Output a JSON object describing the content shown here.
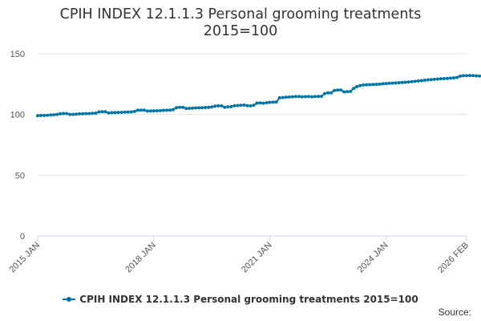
{
  "colors": {
    "series": "#0075a3",
    "grid": "#e6e6e6",
    "axis": "#ccd6eb",
    "text": "#333333"
  },
  "source_label": "Source:",
  "chart_data": {
    "type": "line",
    "title_lines": [
      "CPIH INDEX 12.1.1.3 Personal grooming treatments",
      "2015=100"
    ],
    "xlabel": "",
    "ylabel": "",
    "ylim": [
      0,
      150
    ],
    "y_ticks": [
      0,
      50,
      100,
      150
    ],
    "x_ticks": [
      {
        "value": "2015-01",
        "label": "2015 JAN"
      },
      {
        "value": "2018-01",
        "label": "2018 JAN"
      },
      {
        "value": "2021-01",
        "label": "2021 JAN"
      },
      {
        "value": "2024-01",
        "label": "2024 JAN"
      },
      {
        "value": "2026-02",
        "label": "2026 FEB"
      }
    ],
    "grid": true,
    "legend_position": "bottom-center",
    "x_start": "2015-01",
    "x_end": "2026-02",
    "series": [
      {
        "name": "CPIH INDEX 12.1.1.3 Personal grooming treatments 2015=100",
        "values": [
          99.0,
          99.2,
          99.2,
          99.4,
          99.6,
          99.8,
          100.0,
          100.6,
          100.8,
          100.8,
          100.0,
          100.1,
          100.3,
          100.5,
          100.6,
          100.7,
          100.8,
          100.9,
          101.1,
          102.1,
          102.3,
          102.3,
          101.3,
          101.5,
          101.6,
          101.7,
          101.8,
          101.9,
          102.0,
          102.1,
          102.5,
          103.5,
          103.6,
          103.6,
          102.8,
          102.9,
          103.0,
          103.1,
          103.2,
          103.4,
          103.5,
          103.6,
          104.0,
          105.6,
          105.9,
          105.9,
          105.0,
          105.1,
          105.2,
          105.4,
          105.5,
          105.6,
          105.7,
          105.9,
          106.2,
          106.9,
          107.1,
          107.1,
          106.0,
          106.3,
          106.5,
          107.2,
          107.4,
          107.6,
          107.8,
          107.3,
          107.1,
          107.6,
          109.4,
          109.5,
          109.3,
          109.7,
          110.0,
          110.2,
          110.3,
          113.7,
          114.0,
          114.2,
          114.4,
          114.6,
          114.8,
          114.8,
          114.6,
          114.7,
          114.8,
          114.6,
          114.8,
          114.9,
          115.0,
          117.2,
          117.8,
          117.9,
          119.8,
          120.1,
          120.2,
          118.6,
          118.8,
          119.0,
          121.5,
          123.0,
          123.8,
          124.3,
          124.5,
          124.6,
          124.7,
          124.8,
          125.0,
          125.3,
          125.5,
          125.7,
          125.8,
          126.0,
          126.1,
          126.4,
          126.5,
          126.7,
          127.0,
          127.3,
          127.6,
          127.9,
          128.2,
          128.5,
          128.7,
          128.9,
          129.2,
          129.4,
          129.5,
          129.7,
          129.9,
          130.2,
          130.5,
          131.6,
          131.9,
          132.0,
          132.1,
          132.0,
          131.8,
          131.7,
          131.8,
          131.9,
          132.0,
          132.1,
          133.5,
          133.8
        ]
      }
    ]
  }
}
